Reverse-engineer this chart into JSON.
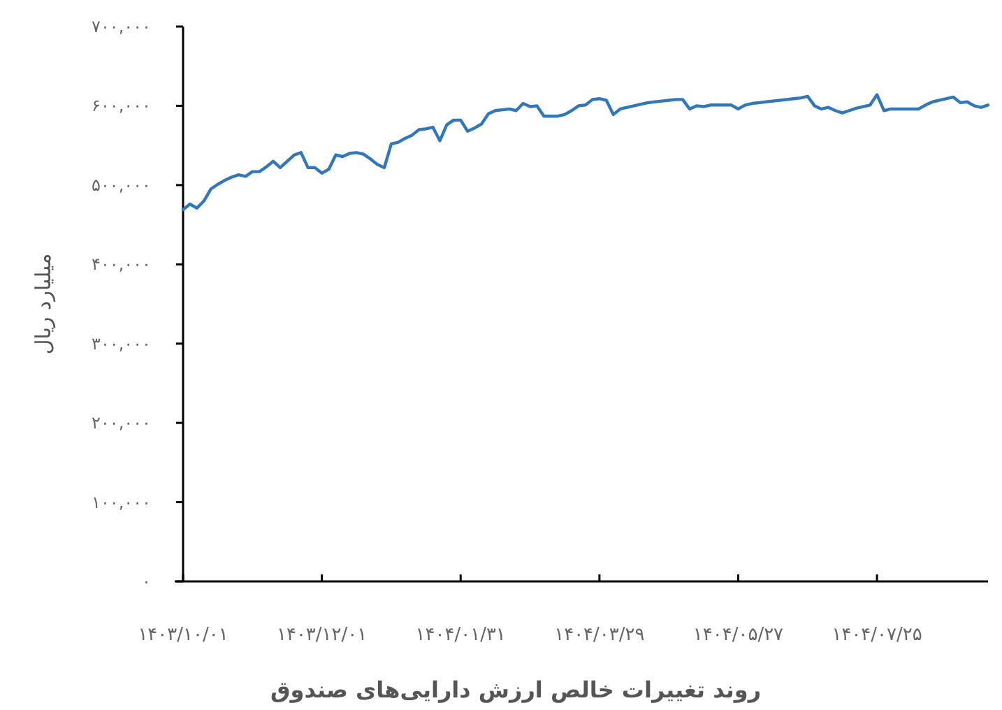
{
  "chart_data": {
    "type": "line",
    "title": "روند تغییرات خالص ارزش دارایی‌های صندوق",
    "ylabel": "میلیارد ریال",
    "categories": [
      "۱۴۰۳/۱۰/۰۱",
      null,
      null,
      null,
      null,
      null,
      null,
      null,
      null,
      null,
      null,
      null,
      null,
      null,
      null,
      null,
      null,
      null,
      null,
      null,
      "۱۴۰۳/۱۲/۰۱",
      null,
      null,
      null,
      null,
      null,
      null,
      null,
      null,
      null,
      null,
      null,
      null,
      null,
      null,
      null,
      null,
      null,
      null,
      null,
      "۱۴۰۴/۰۱/۳۱",
      null,
      null,
      null,
      null,
      null,
      null,
      null,
      null,
      null,
      null,
      null,
      null,
      null,
      null,
      null,
      null,
      null,
      null,
      null,
      "۱۴۰۴/۰۳/۲۹",
      null,
      null,
      null,
      null,
      null,
      null,
      null,
      null,
      null,
      null,
      null,
      null,
      null,
      null,
      null,
      null,
      null,
      null,
      null,
      "۱۴۰۴/۰۵/۲۷",
      null,
      null,
      null,
      null,
      null,
      null,
      null,
      null,
      null,
      null,
      null,
      null,
      null,
      null,
      null,
      null,
      null,
      null,
      null,
      "۱۴۰۴/۰۷/۲۵",
      null,
      null,
      null,
      null,
      null,
      null,
      null,
      null,
      null,
      null,
      null,
      null,
      null,
      null,
      null,
      null
    ],
    "ylim": [
      0,
      700000
    ],
    "yticks": [
      {
        "value": 0,
        "label": "۰"
      },
      {
        "value": 100000,
        "label": "۱۰۰,۰۰۰"
      },
      {
        "value": 200000,
        "label": "۲۰۰,۰۰۰"
      },
      {
        "value": 300000,
        "label": "۳۰۰,۰۰۰"
      },
      {
        "value": 400000,
        "label": "۴۰۰,۰۰۰"
      },
      {
        "value": 500000,
        "label": "۵۰۰,۰۰۰"
      },
      {
        "value": 600000,
        "label": "۶۰۰,۰۰۰"
      },
      {
        "value": 700000,
        "label": "۷۰۰,۰۰۰"
      }
    ],
    "grid": false,
    "marker": "none",
    "line_style": "solid",
    "series": [
      {
        "color": "#3377bb",
        "values": [
          469000,
          476000,
          471000,
          480000,
          495000,
          501000,
          506000,
          510000,
          513000,
          511000,
          517000,
          517000,
          523000,
          530000,
          522000,
          530000,
          538000,
          541000,
          522000,
          522000,
          515000,
          520000,
          538000,
          536000,
          540000,
          541000,
          539000,
          533000,
          526000,
          522000,
          552000,
          554000,
          559000,
          563000,
          570000,
          571000,
          573000,
          556000,
          576000,
          582000,
          582000,
          568000,
          572000,
          577000,
          590000,
          594000,
          595000,
          596000,
          594000,
          603000,
          599000,
          600000,
          587000,
          587000,
          587000,
          589000,
          594000,
          600000,
          601000,
          608000,
          609000,
          607000,
          589000,
          596000,
          598000,
          600000,
          602000,
          604000,
          605000,
          606000,
          607000,
          608000,
          608000,
          596000,
          600000,
          599000,
          601000,
          601000,
          601000,
          601000,
          596000,
          601000,
          603000,
          604000,
          605000,
          606000,
          607000,
          608000,
          609000,
          610000,
          612000,
          600000,
          596000,
          598000,
          594000,
          591000,
          594000,
          597000,
          599000,
          601000,
          614000,
          594000,
          596000,
          596000,
          596000,
          596000,
          596000,
          601000,
          605000,
          607000,
          609000,
          611000,
          604000,
          605000,
          600000,
          598000,
          601000
        ]
      }
    ]
  }
}
